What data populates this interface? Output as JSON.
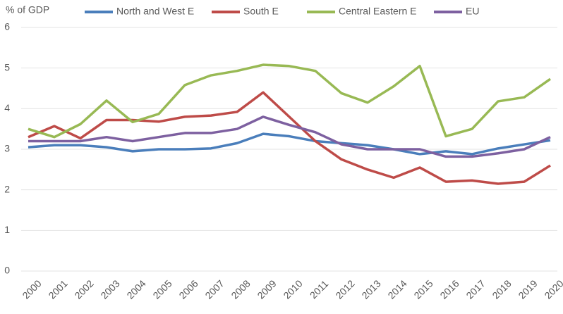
{
  "chart_data": {
    "type": "line",
    "y_label": "% of GDP",
    "categories": [
      "2000",
      "2001",
      "2002",
      "2003",
      "2004",
      "2005",
      "2006",
      "2007",
      "2008",
      "2009",
      "2010",
      "2011",
      "2012",
      "2013",
      "2014",
      "2015",
      "2016",
      "2017",
      "2018",
      "2019",
      "2020"
    ],
    "series": [
      {
        "name": "North and West E",
        "color": "#4a7ebb",
        "values": [
          3.05,
          3.1,
          3.1,
          3.05,
          2.95,
          3.0,
          3.0,
          3.02,
          3.15,
          3.38,
          3.32,
          3.2,
          3.15,
          3.1,
          3.0,
          2.88,
          2.95,
          2.88,
          3.02,
          3.12,
          3.22
        ]
      },
      {
        "name": "South E",
        "color": "#be4b48",
        "values": [
          3.3,
          3.57,
          3.27,
          3.72,
          3.72,
          3.68,
          3.8,
          3.83,
          3.92,
          4.4,
          3.8,
          3.2,
          2.75,
          2.5,
          2.3,
          2.55,
          2.2,
          2.23,
          2.15,
          2.2,
          2.6
        ]
      },
      {
        "name": "Central Eastern E",
        "color": "#98b954",
        "values": [
          3.5,
          3.3,
          3.62,
          4.2,
          3.67,
          3.87,
          4.58,
          4.82,
          4.93,
          5.08,
          5.05,
          4.93,
          4.38,
          4.15,
          4.55,
          5.05,
          3.32,
          3.5,
          4.18,
          4.28,
          4.73
        ]
      },
      {
        "name": "EU",
        "color": "#7d60a0",
        "values": [
          3.2,
          3.2,
          3.2,
          3.3,
          3.2,
          3.3,
          3.4,
          3.4,
          3.5,
          3.8,
          3.6,
          3.42,
          3.12,
          3.0,
          3.0,
          3.0,
          2.82,
          2.82,
          2.9,
          3.0,
          3.3
        ]
      }
    ],
    "ylim": [
      0,
      6
    ],
    "yticks": [
      0,
      1,
      2,
      3,
      4,
      5,
      6
    ],
    "grid": true
  }
}
